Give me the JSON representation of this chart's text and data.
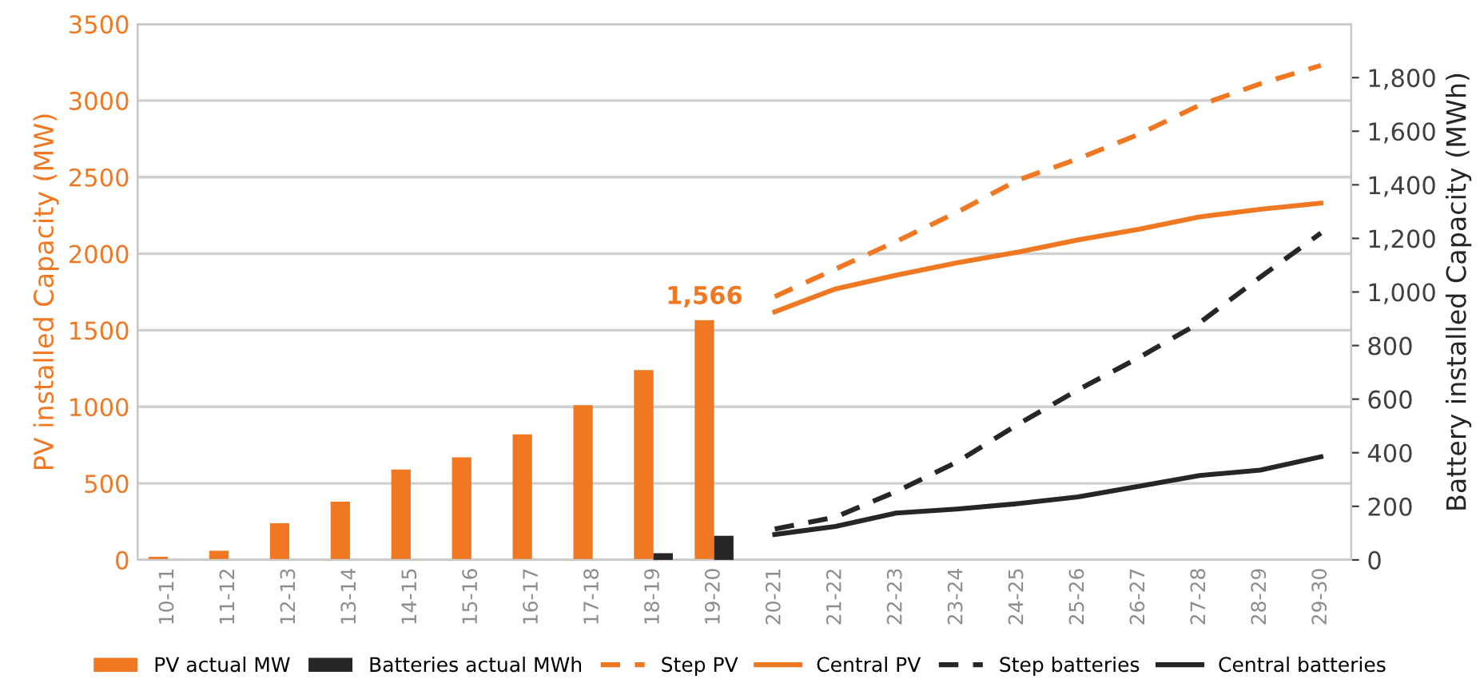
{
  "chart_data": {
    "type": "bar",
    "ylabel": "PV installed Capacity (MW)",
    "y2label": "Battery installed Capacity (MWh)",
    "categories": [
      "10-11",
      "11-12",
      "12-13",
      "13-14",
      "14-15",
      "15-16",
      "16-17",
      "17-18",
      "18-19",
      "19-20",
      "20-21",
      "21-22",
      "22-23",
      "23-24",
      "24-25",
      "25-26",
      "26-27",
      "27-28",
      "28-29",
      "29-30"
    ],
    "series": [
      {
        "name": "PV actual MW",
        "color": "#f07822",
        "values": [
          20,
          60,
          240,
          380,
          590,
          670,
          820,
          1010,
          1240,
          1566,
          null,
          null,
          null,
          null,
          null,
          null,
          null,
          null,
          null,
          null
        ],
        "value_labels": [
          null,
          null,
          null,
          null,
          null,
          null,
          null,
          null,
          null,
          "1,566",
          null,
          null,
          null,
          null,
          null,
          null,
          null,
          null,
          null,
          null
        ]
      },
      {
        "name": "Batteries actual MWh",
        "axis": "y2",
        "color": "#262626",
        "values": [
          null,
          null,
          null,
          null,
          null,
          null,
          null,
          null,
          25,
          90,
          null,
          null,
          null,
          null,
          null,
          null,
          null,
          null,
          null,
          null
        ]
      },
      {
        "name": "Step PV",
        "type": "line",
        "line_style": "dashed",
        "color": "#f07822",
        "values": [
          null,
          null,
          null,
          null,
          null,
          null,
          null,
          null,
          null,
          null,
          1720,
          1900,
          2080,
          2270,
          2480,
          2620,
          2780,
          2970,
          3110,
          3230
        ]
      },
      {
        "name": "Central PV",
        "type": "line",
        "line_style": "solid",
        "color": "#f07822",
        "values": [
          null,
          null,
          null,
          null,
          null,
          null,
          null,
          null,
          null,
          null,
          1620,
          1770,
          1860,
          1940,
          2010,
          2090,
          2160,
          2240,
          2290,
          2330
        ]
      },
      {
        "name": "Step batteries",
        "type": "line",
        "axis": "y2",
        "line_style": "dashed",
        "color": "#262626",
        "values": [
          null,
          null,
          null,
          null,
          null,
          null,
          null,
          null,
          null,
          null,
          115,
          160,
          255,
          365,
          505,
          635,
          755,
          885,
          1055,
          1220
        ]
      },
      {
        "name": "Central batteries",
        "type": "line",
        "axis": "y2",
        "line_style": "solid",
        "color": "#262626",
        "values": [
          null,
          null,
          null,
          null,
          null,
          null,
          null,
          null,
          null,
          null,
          95,
          125,
          175,
          190,
          210,
          235,
          275,
          315,
          335,
          385
        ]
      }
    ],
    "ylim": [
      0,
      3500
    ],
    "yticks": [
      0,
      500,
      1000,
      1500,
      2000,
      2500,
      3000,
      3500
    ],
    "y2lim": [
      0,
      2000
    ],
    "y2ticks": [
      0,
      {
        "value": 200,
        "label": "200"
      },
      {
        "value": 400,
        "label": "400"
      },
      {
        "value": 600,
        "label": "600"
      },
      {
        "value": 800,
        "label": "800"
      },
      {
        "value": 1000,
        "label": "1,000"
      },
      {
        "value": 1200,
        "label": "1,200"
      },
      {
        "value": 1400,
        "label": "1,400"
      },
      {
        "value": 1600,
        "label": "1,600"
      },
      {
        "value": 1800,
        "label": "1,800"
      }
    ],
    "grid": "y",
    "legend": "bottom",
    "marker": "none"
  }
}
